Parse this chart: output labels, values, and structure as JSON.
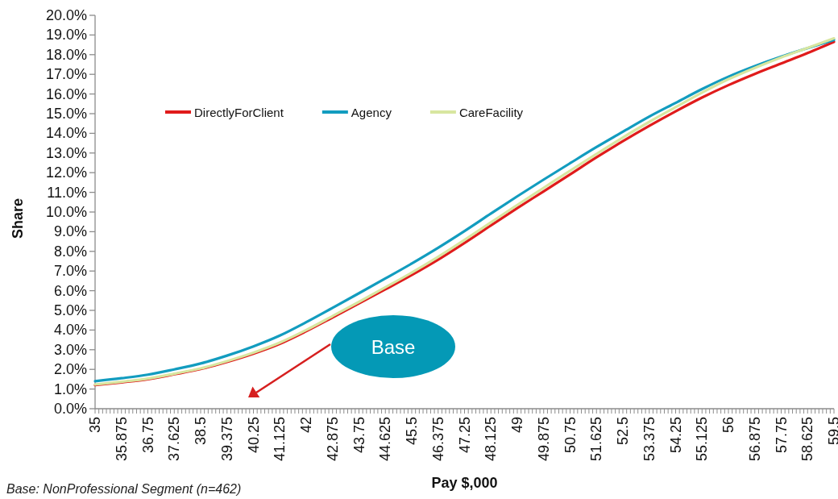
{
  "chart_data": {
    "type": "line",
    "xlabel": "Pay $,000",
    "ylabel": "Share",
    "annotations": [
      "Base",
      "Base: NonProfessional Segment (n=462)"
    ],
    "legend": "top left",
    "x": [
      35,
      35.875,
      36.75,
      37.625,
      38.5,
      39.375,
      40.25,
      41.125,
      42,
      42.875,
      43.75,
      44.625,
      45.5,
      46.375,
      47.25,
      48.125,
      49,
      49.875,
      50.75,
      51.625,
      52.5,
      53.375,
      54.25,
      55.125,
      56,
      56.875,
      57.75,
      58.625,
      59.5
    ],
    "xlim": [
      35,
      59.5
    ],
    "xticks": [
      35,
      {
        "value": 35.125,
        "label": null
      },
      {
        "value": 35.25,
        "label": null
      },
      {
        "value": 35.375,
        "label": null
      },
      {
        "value": 35.5,
        "label": null
      },
      {
        "value": 35.625,
        "label": null
      },
      {
        "value": 35.75,
        "label": null
      },
      35.875,
      {
        "value": 36,
        "label": null
      },
      {
        "value": 36.125,
        "label": null
      },
      {
        "value": 36.25,
        "label": null
      },
      {
        "value": 36.375,
        "label": null
      },
      {
        "value": 36.5,
        "label": null
      },
      {
        "value": 36.625,
        "label": null
      },
      36.75,
      {
        "value": 36.875,
        "label": null
      },
      {
        "value": 37,
        "label": null
      },
      {
        "value": 37.125,
        "label": null
      },
      {
        "value": 37.25,
        "label": null
      },
      {
        "value": 37.375,
        "label": null
      },
      {
        "value": 37.5,
        "label": null
      },
      37.625,
      {
        "value": 37.75,
        "label": null
      },
      {
        "value": 37.875,
        "label": null
      },
      {
        "value": 38,
        "label": null
      },
      {
        "value": 38.125,
        "label": null
      },
      {
        "value": 38.25,
        "label": null
      },
      {
        "value": 38.375,
        "label": null
      },
      38.5,
      {
        "value": 38.625,
        "label": null
      },
      {
        "value": 38.75,
        "label": null
      },
      {
        "value": 38.875,
        "label": null
      },
      {
        "value": 39,
        "label": null
      },
      {
        "value": 39.125,
        "label": null
      },
      {
        "value": 39.25,
        "label": null
      },
      39.375,
      {
        "value": 39.5,
        "label": null
      },
      {
        "value": 39.625,
        "label": null
      },
      {
        "value": 39.75,
        "label": null
      },
      {
        "value": 39.875,
        "label": null
      },
      {
        "value": 40,
        "label": null
      },
      {
        "value": 40.125,
        "label": null
      },
      40.25,
      {
        "value": 40.375,
        "label": null
      },
      {
        "value": 40.5,
        "label": null
      },
      {
        "value": 40.625,
        "label": null
      },
      {
        "value": 40.75,
        "label": null
      },
      {
        "value": 40.875,
        "label": null
      },
      {
        "value": 41,
        "label": null
      },
      41.125,
      {
        "value": 41.25,
        "label": null
      },
      {
        "value": 41.375,
        "label": null
      },
      {
        "value": 41.5,
        "label": null
      },
      {
        "value": 41.625,
        "label": null
      },
      {
        "value": 41.75,
        "label": null
      },
      {
        "value": 41.875,
        "label": null
      },
      42,
      {
        "value": 42.125,
        "label": null
      },
      {
        "value": 42.25,
        "label": null
      },
      {
        "value": 42.375,
        "label": null
      },
      {
        "value": 42.5,
        "label": null
      },
      {
        "value": 42.625,
        "label": null
      },
      {
        "value": 42.75,
        "label": null
      },
      42.875,
      {
        "value": 43,
        "label": null
      },
      {
        "value": 43.125,
        "label": null
      },
      {
        "value": 43.25,
        "label": null
      },
      {
        "value": 43.375,
        "label": null
      },
      {
        "value": 43.5,
        "label": null
      },
      {
        "value": 43.625,
        "label": null
      },
      43.75,
      {
        "value": 43.875,
        "label": null
      },
      {
        "value": 44,
        "label": null
      },
      {
        "value": 44.125,
        "label": null
      },
      {
        "value": 44.25,
        "label": null
      },
      {
        "value": 44.375,
        "label": null
      },
      {
        "value": 44.5,
        "label": null
      },
      44.625,
      {
        "value": 44.75,
        "label": null
      },
      {
        "value": 44.875,
        "label": null
      },
      {
        "value": 45,
        "label": null
      },
      {
        "value": 45.125,
        "label": null
      },
      {
        "value": 45.25,
        "label": null
      },
      {
        "value": 45.375,
        "label": null
      },
      45.5,
      {
        "value": 45.625,
        "label": null
      },
      {
        "value": 45.75,
        "label": null
      },
      {
        "value": 45.875,
        "label": null
      },
      {
        "value": 46,
        "label": null
      },
      {
        "value": 46.125,
        "label": null
      },
      {
        "value": 46.25,
        "label": null
      },
      46.375,
      {
        "value": 46.5,
        "label": null
      },
      {
        "value": 46.625,
        "label": null
      },
      {
        "value": 46.75,
        "label": null
      },
      {
        "value": 46.875,
        "label": null
      },
      {
        "value": 47,
        "label": null
      },
      {
        "value": 47.125,
        "label": null
      },
      47.25,
      {
        "value": 47.375,
        "label": null
      },
      {
        "value": 47.5,
        "label": null
      },
      {
        "value": 47.625,
        "label": null
      },
      {
        "value": 47.75,
        "label": null
      },
      {
        "value": 47.875,
        "label": null
      },
      {
        "value": 48,
        "label": null
      },
      48.125,
      {
        "value": 48.25,
        "label": null
      },
      {
        "value": 48.375,
        "label": null
      },
      {
        "value": 48.5,
        "label": null
      },
      {
        "value": 48.625,
        "label": null
      },
      {
        "value": 48.75,
        "label": null
      },
      {
        "value": 48.875,
        "label": null
      },
      49,
      {
        "value": 49.125,
        "label": null
      },
      {
        "value": 49.25,
        "label": null
      },
      {
        "value": 49.375,
        "label": null
      },
      {
        "value": 49.5,
        "label": null
      },
      {
        "value": 49.625,
        "label": null
      },
      {
        "value": 49.75,
        "label": null
      },
      49.875,
      {
        "value": 50,
        "label": null
      },
      {
        "value": 50.125,
        "label": null
      },
      {
        "value": 50.25,
        "label": null
      },
      {
        "value": 50.375,
        "label": null
      },
      {
        "value": 50.5,
        "label": null
      },
      {
        "value": 50.625,
        "label": null
      },
      50.75,
      {
        "value": 50.875,
        "label": null
      },
      {
        "value": 51,
        "label": null
      },
      {
        "value": 51.125,
        "label": null
      },
      {
        "value": 51.25,
        "label": null
      },
      {
        "value": 51.375,
        "label": null
      },
      {
        "value": 51.5,
        "label": null
      },
      51.625,
      {
        "value": 51.75,
        "label": null
      },
      {
        "value": 51.875,
        "label": null
      },
      {
        "value": 52,
        "label": null
      },
      {
        "value": 52.125,
        "label": null
      },
      {
        "value": 52.25,
        "label": null
      },
      {
        "value": 52.375,
        "label": null
      },
      52.5,
      {
        "value": 52.625,
        "label": null
      },
      {
        "value": 52.75,
        "label": null
      },
      {
        "value": 52.875,
        "label": null
      },
      {
        "value": 53,
        "label": null
      },
      {
        "value": 53.125,
        "label": null
      },
      {
        "value": 53.25,
        "label": null
      },
      53.375,
      {
        "value": 53.5,
        "label": null
      },
      {
        "value": 53.625,
        "label": null
      },
      {
        "value": 53.75,
        "label": null
      },
      {
        "value": 53.875,
        "label": null
      },
      {
        "value": 54,
        "label": null
      },
      {
        "value": 54.125,
        "label": null
      },
      54.25,
      {
        "value": 54.375,
        "label": null
      },
      {
        "value": 54.5,
        "label": null
      },
      {
        "value": 54.625,
        "label": null
      },
      {
        "value": 54.75,
        "label": null
      },
      {
        "value": 54.875,
        "label": null
      },
      {
        "value": 55,
        "label": null
      },
      55.125,
      {
        "value": 55.25,
        "label": null
      },
      {
        "value": 55.375,
        "label": null
      },
      {
        "value": 55.5,
        "label": null
      },
      {
        "value": 55.625,
        "label": null
      },
      {
        "value": 55.75,
        "label": null
      },
      {
        "value": 55.875,
        "label": null
      },
      56,
      {
        "value": 56.125,
        "label": null
      },
      {
        "value": 56.25,
        "label": null
      },
      {
        "value": 56.375,
        "label": null
      },
      {
        "value": 56.5,
        "label": null
      },
      {
        "value": 56.625,
        "label": null
      },
      {
        "value": 56.75,
        "label": null
      },
      56.875,
      {
        "value": 57,
        "label": null
      },
      {
        "value": 57.125,
        "label": null
      },
      {
        "value": 57.25,
        "label": null
      },
      {
        "value": 57.375,
        "label": null
      },
      {
        "value": 57.5,
        "label": null
      },
      {
        "value": 57.625,
        "label": null
      },
      57.75,
      {
        "value": 57.875,
        "label": null
      },
      {
        "value": 58,
        "label": null
      },
      {
        "value": 58.125,
        "label": null
      },
      {
        "value": 58.25,
        "label": null
      },
      {
        "value": 58.375,
        "label": null
      },
      {
        "value": 58.5,
        "label": null
      },
      58.625,
      {
        "value": 58.75,
        "label": null
      },
      {
        "value": 58.875,
        "label": null
      },
      {
        "value": 59,
        "label": null
      },
      {
        "value": 59.125,
        "label": null
      },
      {
        "value": 59.25,
        "label": null
      },
      {
        "value": 59.375,
        "label": null
      },
      59.5
    ],
    "ylim": [
      0,
      20
    ],
    "yticks": [
      {
        "value": 0,
        "label": "0.0%"
      },
      {
        "value": 1,
        "label": "1.0%"
      },
      {
        "value": 2,
        "label": "2.0%"
      },
      {
        "value": 3,
        "label": "3.0%"
      },
      {
        "value": 4,
        "label": "4.0%"
      },
      {
        "value": 5,
        "label": "5.0%"
      },
      {
        "value": 6,
        "label": "6.0%"
      },
      {
        "value": 7,
        "label": "7.0%"
      },
      {
        "value": 8,
        "label": "8.0%"
      },
      {
        "value": 9,
        "label": "9.0%"
      },
      {
        "value": 10,
        "label": "10.0%"
      },
      {
        "value": 11,
        "label": "11.0%"
      },
      {
        "value": 12,
        "label": "12.0%"
      },
      {
        "value": 13,
        "label": "13.0%"
      },
      {
        "value": 14,
        "label": "14.0%"
      },
      {
        "value": 15,
        "label": "15.0%"
      },
      {
        "value": 16,
        "label": "16.0%"
      },
      {
        "value": 17,
        "label": "17.0%"
      },
      {
        "value": 18,
        "label": "18.0%"
      },
      {
        "value": 19,
        "label": "19.0%"
      },
      {
        "value": 20,
        "label": "20.0%"
      }
    ],
    "series": [
      {
        "name": "DirectlyForClient",
        "color": "#e01b1b",
        "values": [
          1.2,
          1.34,
          1.5,
          1.75,
          2.02,
          2.38,
          2.8,
          3.3,
          3.94,
          4.64,
          5.35,
          6.07,
          6.8,
          7.58,
          8.43,
          9.32,
          10.2,
          11.05,
          11.91,
          12.78,
          13.6,
          14.38,
          15.12,
          15.82,
          16.45,
          17.02,
          17.55,
          18.08,
          18.65
        ]
      },
      {
        "name": "Agency",
        "color": "#129cbf",
        "values": [
          1.4,
          1.55,
          1.73,
          2.0,
          2.3,
          2.7,
          3.17,
          3.72,
          4.4,
          5.13,
          5.87,
          6.62,
          7.38,
          8.18,
          9.03,
          9.92,
          10.8,
          11.65,
          12.48,
          13.3,
          14.08,
          14.85,
          15.55,
          16.25,
          16.88,
          17.42,
          17.9,
          18.33,
          18.75
        ]
      },
      {
        "name": "CareFacility",
        "color": "#d8e6a0",
        "values": [
          1.23,
          1.37,
          1.53,
          1.78,
          2.05,
          2.42,
          2.85,
          3.36,
          4.0,
          4.71,
          5.43,
          6.17,
          6.92,
          7.72,
          8.58,
          9.47,
          10.36,
          11.23,
          12.1,
          12.95,
          13.79,
          14.58,
          15.33,
          16.07,
          16.75,
          17.33,
          17.86,
          18.34,
          18.83
        ]
      }
    ]
  }
}
